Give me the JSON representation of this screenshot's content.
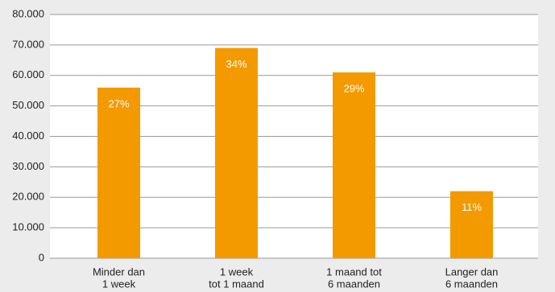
{
  "chart_data": {
    "type": "bar",
    "categories": [
      [
        "Minder dan",
        "1 week"
      ],
      [
        "1 week",
        "tot 1 maand"
      ],
      [
        "1 maand tot",
        "6 maanden"
      ],
      [
        "Langer dan",
        "6 maanden"
      ]
    ],
    "values": [
      56000,
      69000,
      61000,
      22000
    ],
    "percent_labels": [
      "27%",
      "34%",
      "29%",
      "11%"
    ],
    "color": "#f29a00",
    "ylim": [
      0,
      80000
    ],
    "yticks": [
      0,
      {
        "value": 10000,
        "label": "10.000"
      },
      {
        "value": 20000,
        "label": "20.000"
      },
      {
        "value": 30000,
        "label": "30.000"
      },
      {
        "value": 40000,
        "label": "40.000"
      },
      {
        "value": 50000,
        "label": "50.000"
      },
      {
        "value": 60000,
        "label": "60.000"
      },
      {
        "value": 70000,
        "label": "70.000"
      },
      {
        "value": 80000,
        "label": "80.000"
      }
    ],
    "grid": true
  }
}
